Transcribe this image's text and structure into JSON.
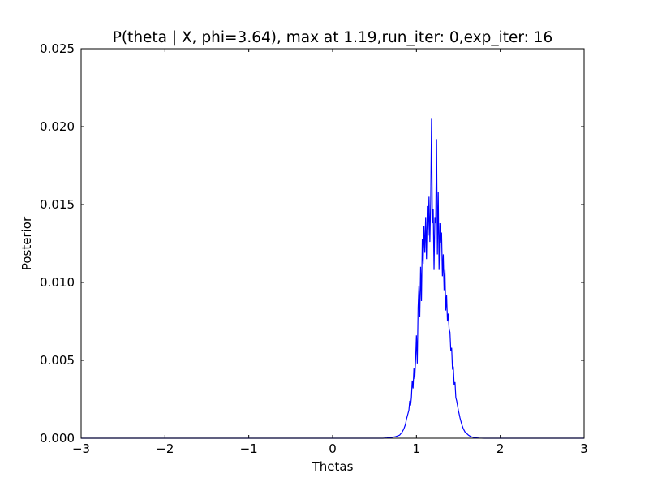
{
  "chart_data": {
    "type": "line",
    "title": "P(theta | X, phi=3.64), max at 1.19,run_iter: 0,exp_iter: 16",
    "xlabel": "Thetas",
    "ylabel": "Posterior",
    "xlim": [
      -3,
      3
    ],
    "ylim": [
      0,
      0.025
    ],
    "xticks": [
      -3,
      -2,
      -1,
      0,
      1,
      2,
      3
    ],
    "xtick_labels": [
      "−3",
      "−2",
      "−1",
      "0",
      "1",
      "2",
      "3"
    ],
    "yticks": [
      0.0,
      0.005,
      0.01,
      0.015,
      0.02,
      0.025
    ],
    "ytick_labels": [
      "0.000",
      "0.005",
      "0.010",
      "0.015",
      "0.020",
      "0.025"
    ],
    "grid": false,
    "legend": "none",
    "series": [
      {
        "color": "#0000ff",
        "x": [
          -3.0,
          0.0,
          0.5,
          0.6,
          0.65,
          0.7,
          0.75,
          0.8,
          0.83,
          0.85,
          0.87,
          0.88,
          0.9,
          0.91,
          0.92,
          0.93,
          0.94,
          0.95,
          0.96,
          0.97,
          0.98,
          0.99,
          1.0,
          1.01,
          1.02,
          1.03,
          1.04,
          1.05,
          1.06,
          1.07,
          1.08,
          1.09,
          1.1,
          1.11,
          1.12,
          1.13,
          1.14,
          1.15,
          1.16,
          1.17,
          1.18,
          1.19,
          1.2,
          1.21,
          1.22,
          1.23,
          1.24,
          1.25,
          1.26,
          1.27,
          1.28,
          1.29,
          1.3,
          1.31,
          1.32,
          1.33,
          1.34,
          1.35,
          1.36,
          1.37,
          1.38,
          1.39,
          1.4,
          1.41,
          1.42,
          1.43,
          1.44,
          1.45,
          1.46,
          1.47,
          1.48,
          1.5,
          1.52,
          1.54,
          1.56,
          1.58,
          1.6,
          1.62,
          1.65,
          1.7,
          1.75,
          1.8,
          1.9,
          2.0,
          3.0
        ],
        "y": [
          0.0,
          0.0,
          0.0,
          0.0,
          2e-05,
          5e-05,
          0.0001,
          0.0002,
          0.0004,
          0.0006,
          0.0009,
          0.0012,
          0.0016,
          0.0018,
          0.0024,
          0.0021,
          0.0026,
          0.0037,
          0.0032,
          0.0045,
          0.0038,
          0.005,
          0.0066,
          0.0048,
          0.0084,
          0.0098,
          0.0078,
          0.011,
          0.0088,
          0.0128,
          0.0112,
          0.0136,
          0.0119,
          0.0142,
          0.0115,
          0.0149,
          0.013,
          0.0155,
          0.0126,
          0.0152,
          0.0205,
          0.0138,
          0.0147,
          0.0108,
          0.0142,
          0.0138,
          0.0192,
          0.0118,
          0.0158,
          0.0108,
          0.0138,
          0.0125,
          0.0132,
          0.0104,
          0.0118,
          0.0095,
          0.0108,
          0.0082,
          0.0092,
          0.0075,
          0.008,
          0.007,
          0.0068,
          0.0056,
          0.0058,
          0.0044,
          0.0046,
          0.0034,
          0.0036,
          0.0026,
          0.0024,
          0.0018,
          0.0013,
          0.0009,
          0.0006,
          0.0004,
          0.0003,
          0.0002,
          0.0001,
          3e-05,
          1e-05,
          0.0,
          0.0,
          0.0,
          0.0
        ]
      }
    ]
  }
}
